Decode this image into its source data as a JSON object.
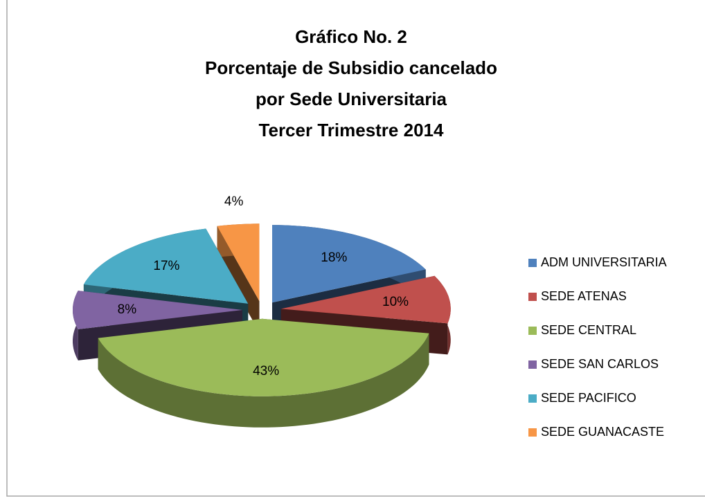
{
  "chart_data": {
    "type": "pie3d",
    "title": [
      "Gráfico No. 2",
      "Porcentaje de Subsidio cancelado",
      "por Sede Universitaria",
      "Tercer Trimestre 2014"
    ],
    "categories": [
      "ADM UNIVERSITARIA",
      "SEDE ATENAS",
      "SEDE CENTRAL",
      "SEDE SAN CARLOS",
      "SEDE PACIFICO",
      "SEDE GUANACASTE"
    ],
    "values": [
      18,
      10,
      43,
      8,
      17,
      4
    ],
    "value_labels": [
      "18%",
      "10%",
      "43%",
      "8%",
      "17%",
      "4%"
    ],
    "colors": [
      "#4f81bd",
      "#c0504d",
      "#9bbb59",
      "#8064a2",
      "#4bacc6",
      "#f79646"
    ],
    "legend": "right"
  }
}
